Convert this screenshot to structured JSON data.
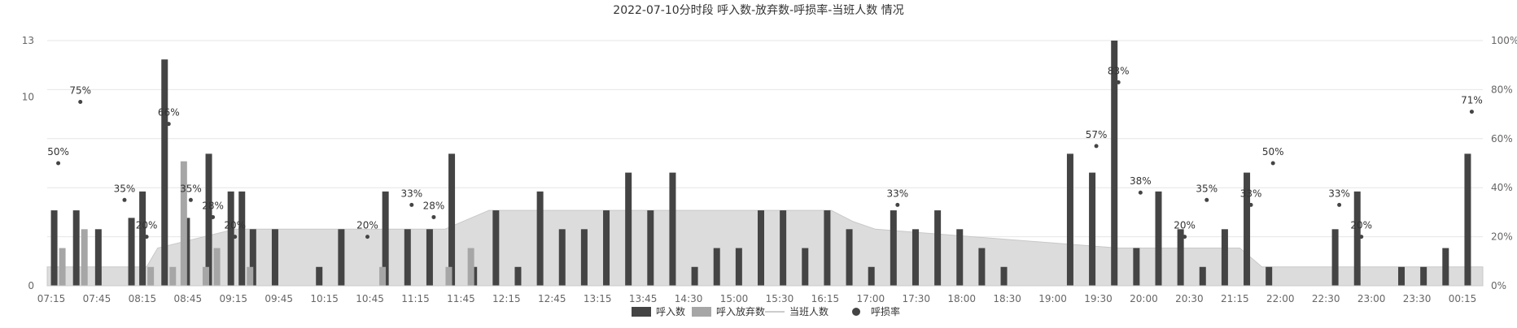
{
  "chart_data": {
    "type": "bar",
    "title": "2022-07-10分时段 呼入数-放弃数-呼损率-当班人数 情况",
    "x_tick_labels": [
      "07:15",
      "07:45",
      "08:15",
      "08:45",
      "09:15",
      "09:45",
      "10:15",
      "10:45",
      "11:15",
      "11:45",
      "12:15",
      "12:45",
      "13:15",
      "13:45",
      "14:30",
      "15:00",
      "15:30",
      "16:15",
      "17:00",
      "17:30",
      "18:00",
      "18:30",
      "19:00",
      "19:30",
      "20:00",
      "20:30",
      "21:15",
      "22:00",
      "22:30",
      "23:00",
      "23:30",
      "00:15"
    ],
    "y_left": {
      "ticks": [
        "0",
        "10",
        "13"
      ],
      "min": 0,
      "max": 13
    },
    "y_right": {
      "ticks": [
        "0%",
        "20%",
        "40%",
        "60%",
        "80%",
        "100%"
      ],
      "min": 0,
      "max": 100
    },
    "legend": {
      "position": "bottom-center",
      "items": [
        "呼入数",
        "呼入放弃数",
        "当班人数",
        "呼损率"
      ]
    },
    "colors": {
      "calls": "#444444",
      "abandoned": "#a6a6a6",
      "staff_area": "#dcdcdc",
      "staff_line": "#c8c8c8",
      "loss": "#444444",
      "grid": "#e6e6e6",
      "axis_text": "#666666"
    },
    "series": [
      {
        "name": "呼入数",
        "kind": "bar",
        "values": [
          4,
          4,
          3,
          0,
          3.6,
          5,
          12,
          3.6,
          7,
          5,
          5,
          3,
          3,
          0,
          1,
          3,
          0,
          5,
          3,
          3,
          7,
          1,
          4,
          1,
          5,
          3,
          3,
          4,
          6,
          4,
          6,
          1,
          2,
          2,
          4,
          4,
          2,
          4,
          3,
          1,
          4,
          3,
          4,
          3,
          2,
          1,
          0,
          7,
          6,
          13,
          2,
          5,
          3,
          1,
          3,
          6,
          1,
          0,
          0,
          3,
          5,
          0,
          1,
          1,
          2,
          7
        ],
        "x": [
          0,
          1,
          2,
          3,
          3.5,
          4,
          5,
          6,
          7,
          8,
          8.5,
          9,
          10,
          11,
          12,
          13,
          14,
          15,
          16,
          17,
          18,
          19,
          20,
          21,
          22,
          23,
          24,
          25,
          26,
          27,
          28,
          29,
          30,
          31,
          32,
          33,
          34,
          35,
          36,
          37,
          38,
          39,
          40,
          41,
          42,
          43,
          44,
          46,
          47,
          48,
          49,
          50,
          51,
          52,
          53,
          54,
          55,
          56,
          57,
          58,
          59,
          60,
          61,
          62,
          63,
          64
        ]
      },
      {
        "name": "呼入放弃数",
        "kind": "bar",
        "values": [
          2,
          3,
          0,
          1,
          1,
          6.6,
          1,
          2,
          1,
          0,
          0,
          0,
          0,
          0,
          1,
          0,
          0,
          1,
          2
        ],
        "x": [
          0,
          1,
          3,
          4,
          5,
          5.5,
          6.5,
          7,
          8.5,
          0,
          0,
          0,
          0,
          0,
          14.5,
          0,
          0,
          17.5,
          18.5
        ]
      },
      {
        "name": "当班人数",
        "kind": "area",
        "x": [
          0,
          3,
          4,
          4.5,
          8,
          17.5,
          19.5,
          35,
          36,
          37,
          48,
          49,
          53.5,
          54.5,
          64
        ],
        "values": [
          1,
          1,
          1,
          2,
          3,
          3,
          4,
          4,
          3.4,
          3,
          2,
          2,
          2,
          1,
          1
        ]
      },
      {
        "name": "呼损率",
        "kind": "scatter",
        "unit": "%",
        "points": [
          [
            0,
            50
          ],
          [
            1,
            75
          ],
          [
            3,
            35
          ],
          [
            4,
            20
          ],
          [
            5,
            66
          ],
          [
            6,
            35
          ],
          [
            7,
            28
          ],
          [
            8,
            20
          ],
          [
            14,
            20
          ],
          [
            16,
            33
          ],
          [
            17,
            28
          ],
          [
            38,
            33
          ],
          [
            47,
            57
          ],
          [
            48,
            83
          ],
          [
            49,
            38
          ],
          [
            51,
            20
          ],
          [
            52,
            35
          ],
          [
            54,
            33
          ],
          [
            55,
            50
          ],
          [
            58,
            33
          ],
          [
            59,
            20
          ],
          [
            64,
            71
          ]
        ]
      }
    ]
  }
}
